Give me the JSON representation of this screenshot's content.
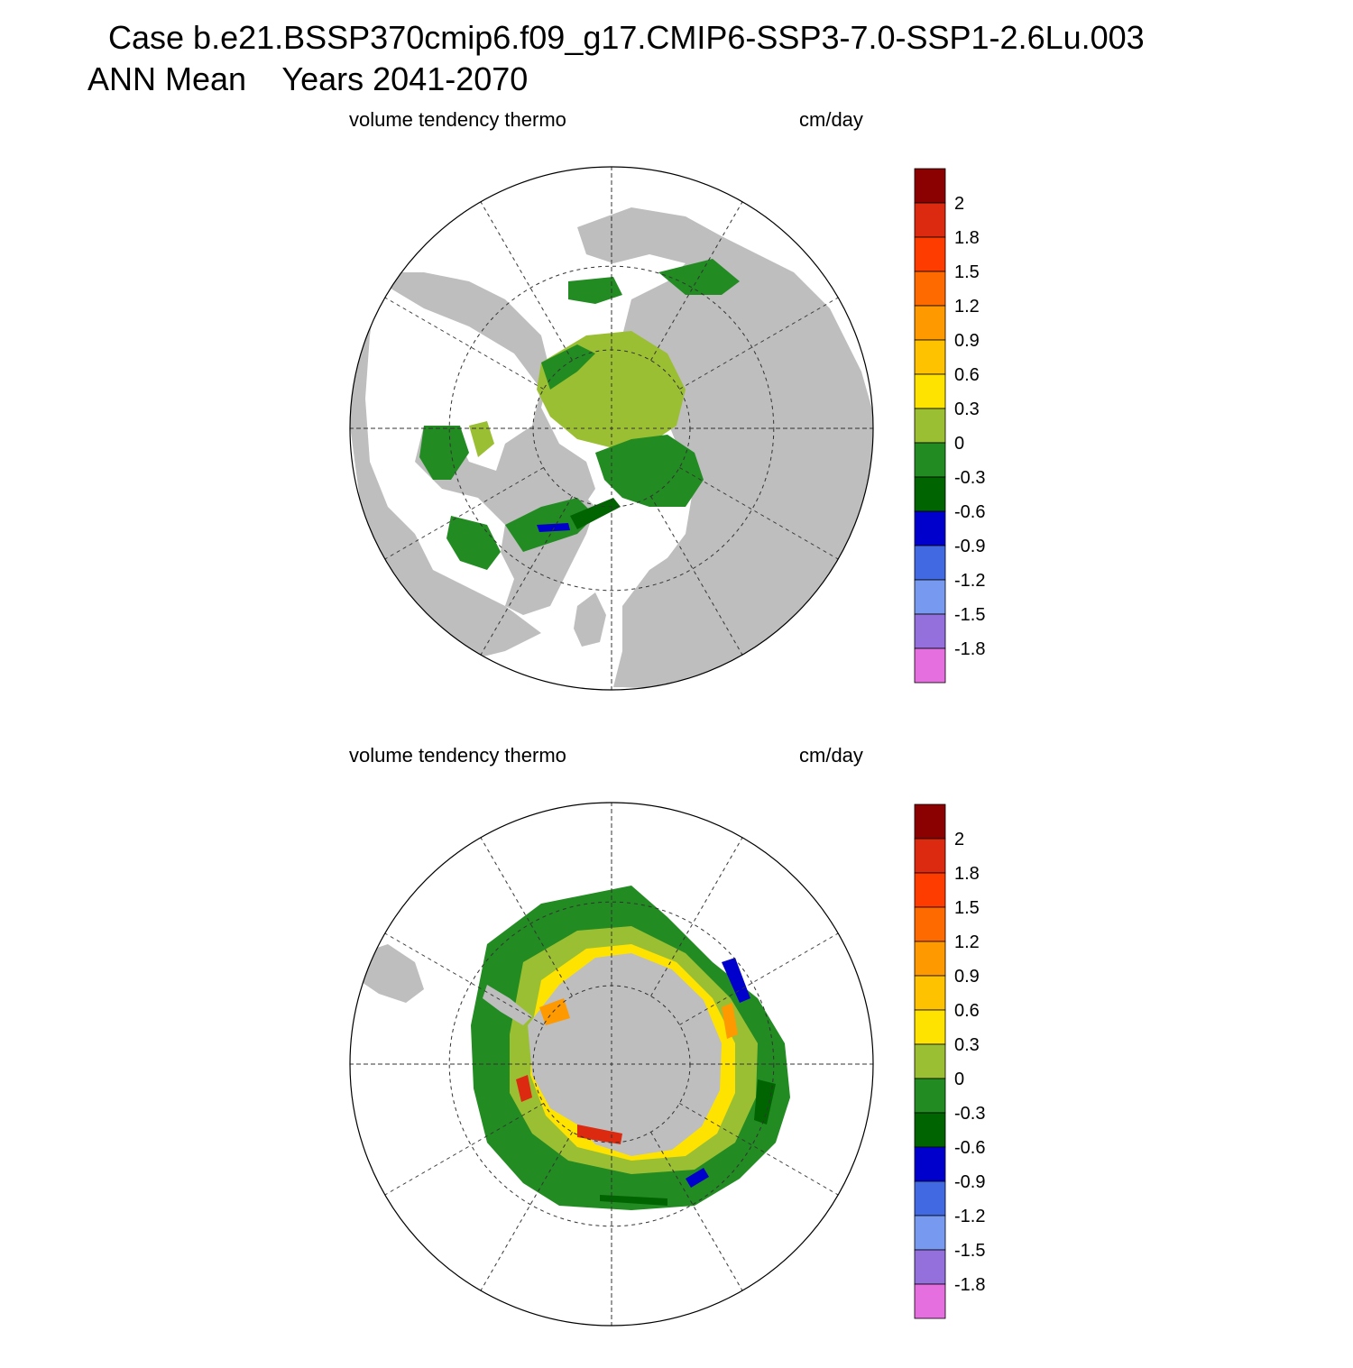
{
  "title": {
    "line1": "Case b.e21.BSSP370cmip6.f09_g17.CMIP6-SSP3-7.0-SSP1-2.6Lu.003",
    "line2": "ANN Mean    Years 2041-2070"
  },
  "panels": [
    {
      "id": "north",
      "hemisphere": "north",
      "variable": "volume tendency thermo",
      "units": "cm/day"
    },
    {
      "id": "south",
      "hemisphere": "south",
      "variable": "volume tendency thermo",
      "units": "cm/day"
    }
  ],
  "colorbar": {
    "colors": [
      "#8b0000",
      "#dc2a10",
      "#ff3c00",
      "#ff6a00",
      "#ff9900",
      "#ffc200",
      "#ffe300",
      "#9bbf33",
      "#228b22",
      "#006400",
      "#0000cd",
      "#4169e1",
      "#7799f0",
      "#9370db",
      "#e66fe0"
    ],
    "labels": [
      "2",
      "1.8",
      "1.5",
      "1.2",
      "0.9",
      "0.6",
      "0.3",
      "0",
      "-0.3",
      "-0.6",
      "-0.9",
      "-1.2",
      "-1.5",
      "-1.8"
    ]
  },
  "map_colors": {
    "land": "#bebebe",
    "ocean": "#ffffff",
    "ice_light": "#9bbf33",
    "ice_mid": "#228b22",
    "ice_dark": "#006400",
    "ice_blue": "#0000cd",
    "ice_yellow": "#ffe300",
    "ice_orange": "#ff9900",
    "ice_red": "#dc2a10"
  }
}
